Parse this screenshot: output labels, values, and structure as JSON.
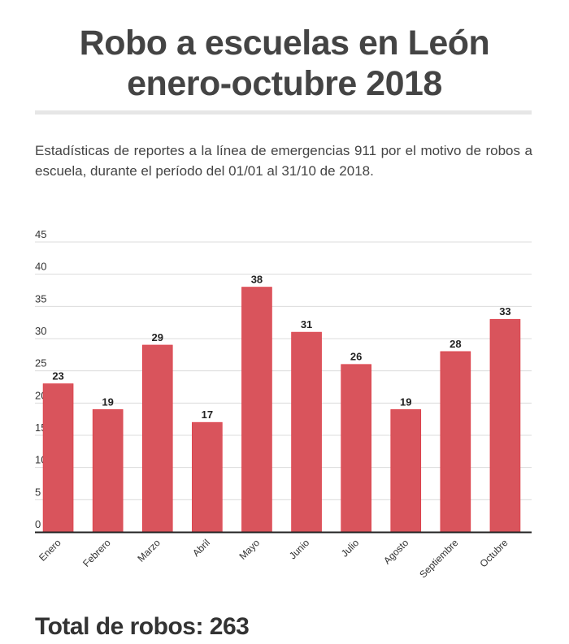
{
  "header": {
    "title_line1": "Robo a escuelas en León",
    "title_line2": "enero-octubre 2018"
  },
  "description": "Estadísticas de reportes a la línea de emergencias 911 por el motivo de robos a escuela, durante el período del 01/01 al 31/10 de 2018.",
  "chart_data": {
    "type": "bar",
    "title": "",
    "xlabel": "",
    "ylabel": "",
    "categories": [
      "Enero",
      "Febrero",
      "Marzo",
      "Abril",
      "Mayo",
      "Junio",
      "Julio",
      "Agosto",
      "Septiembre",
      "Octubre"
    ],
    "values": [
      23,
      19,
      29,
      17,
      38,
      31,
      26,
      19,
      28,
      33
    ],
    "ylim": [
      0,
      45
    ],
    "yticks": [
      0,
      5,
      10,
      15,
      20,
      25,
      30,
      35,
      40,
      45
    ],
    "grid": true,
    "data_labels": true,
    "bar_color": "#d9545c"
  },
  "footer": {
    "total": "Total de robos: 263"
  }
}
